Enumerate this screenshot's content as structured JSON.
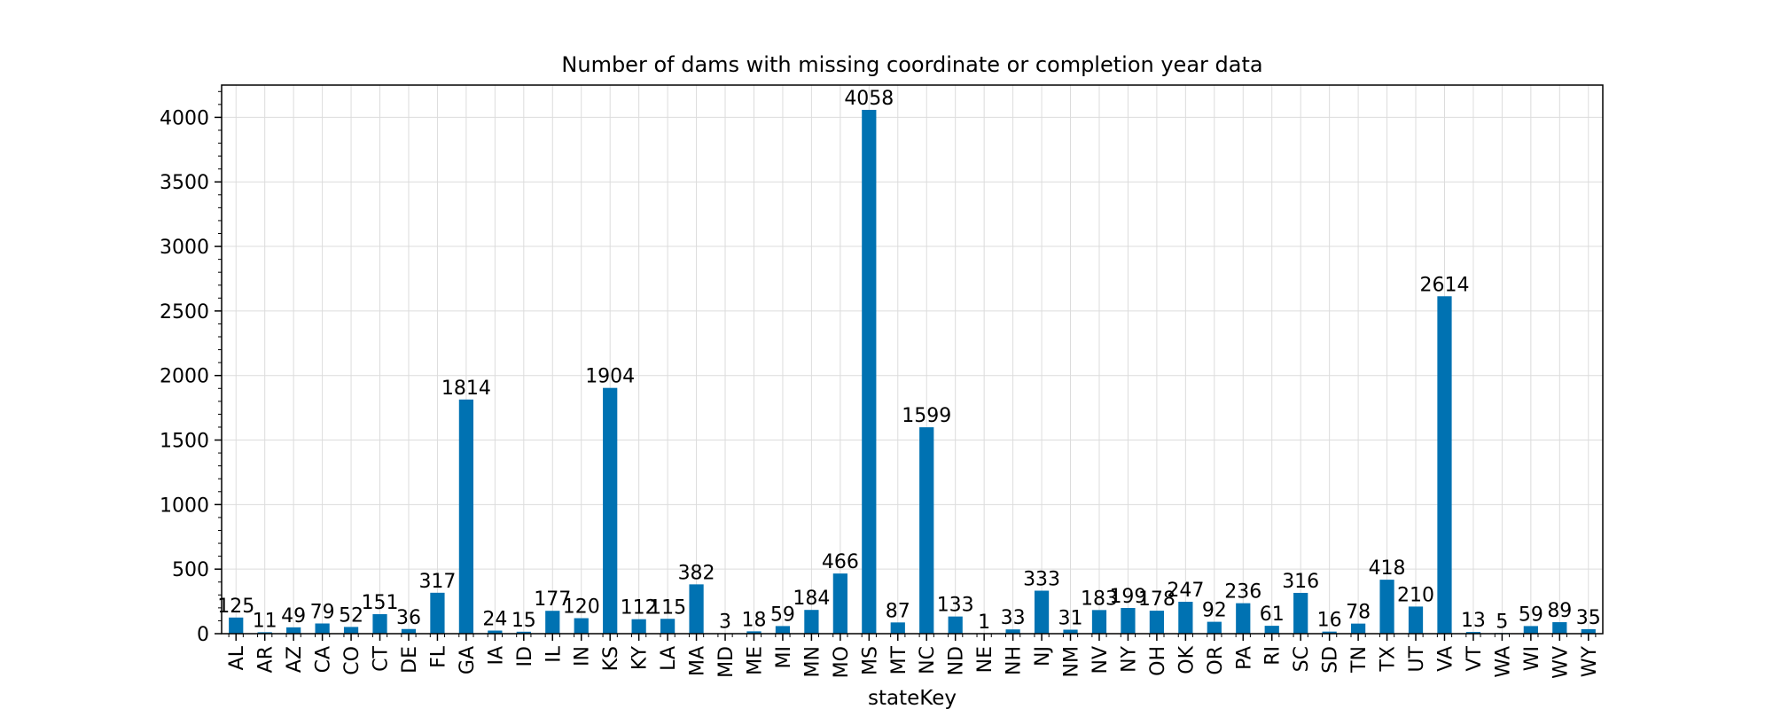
{
  "chart_data": {
    "type": "bar",
    "title": "Number of dams with missing coordinate or completion year data",
    "xlabel": "stateKey",
    "ylabel": "",
    "ylim": [
      0,
      4250
    ],
    "yticks": [
      0,
      500,
      1000,
      1500,
      2000,
      2500,
      3000,
      3500,
      4000
    ],
    "grid": true,
    "bar_color": "#0072b2",
    "categories": [
      "AL",
      "AR",
      "AZ",
      "CA",
      "CO",
      "CT",
      "DE",
      "FL",
      "GA",
      "IA",
      "ID",
      "IL",
      "IN",
      "KS",
      "KY",
      "LA",
      "MA",
      "MD",
      "ME",
      "MI",
      "MN",
      "MO",
      "MS",
      "MT",
      "NC",
      "ND",
      "NE",
      "NH",
      "NJ",
      "NM",
      "NV",
      "NY",
      "OH",
      "OK",
      "OR",
      "PA",
      "RI",
      "SC",
      "SD",
      "TN",
      "TX",
      "UT",
      "VA",
      "VT",
      "WA",
      "WI",
      "WV",
      "WY"
    ],
    "values": [
      125,
      11,
      49,
      79,
      52,
      151,
      36,
      317,
      1814,
      24,
      15,
      177,
      120,
      1904,
      112,
      115,
      382,
      3,
      18,
      59,
      184,
      466,
      4058,
      87,
      1599,
      133,
      1,
      33,
      333,
      31,
      183,
      199,
      178,
      247,
      92,
      236,
      61,
      316,
      16,
      78,
      418,
      210,
      2614,
      13,
      5,
      59,
      89,
      35
    ]
  }
}
